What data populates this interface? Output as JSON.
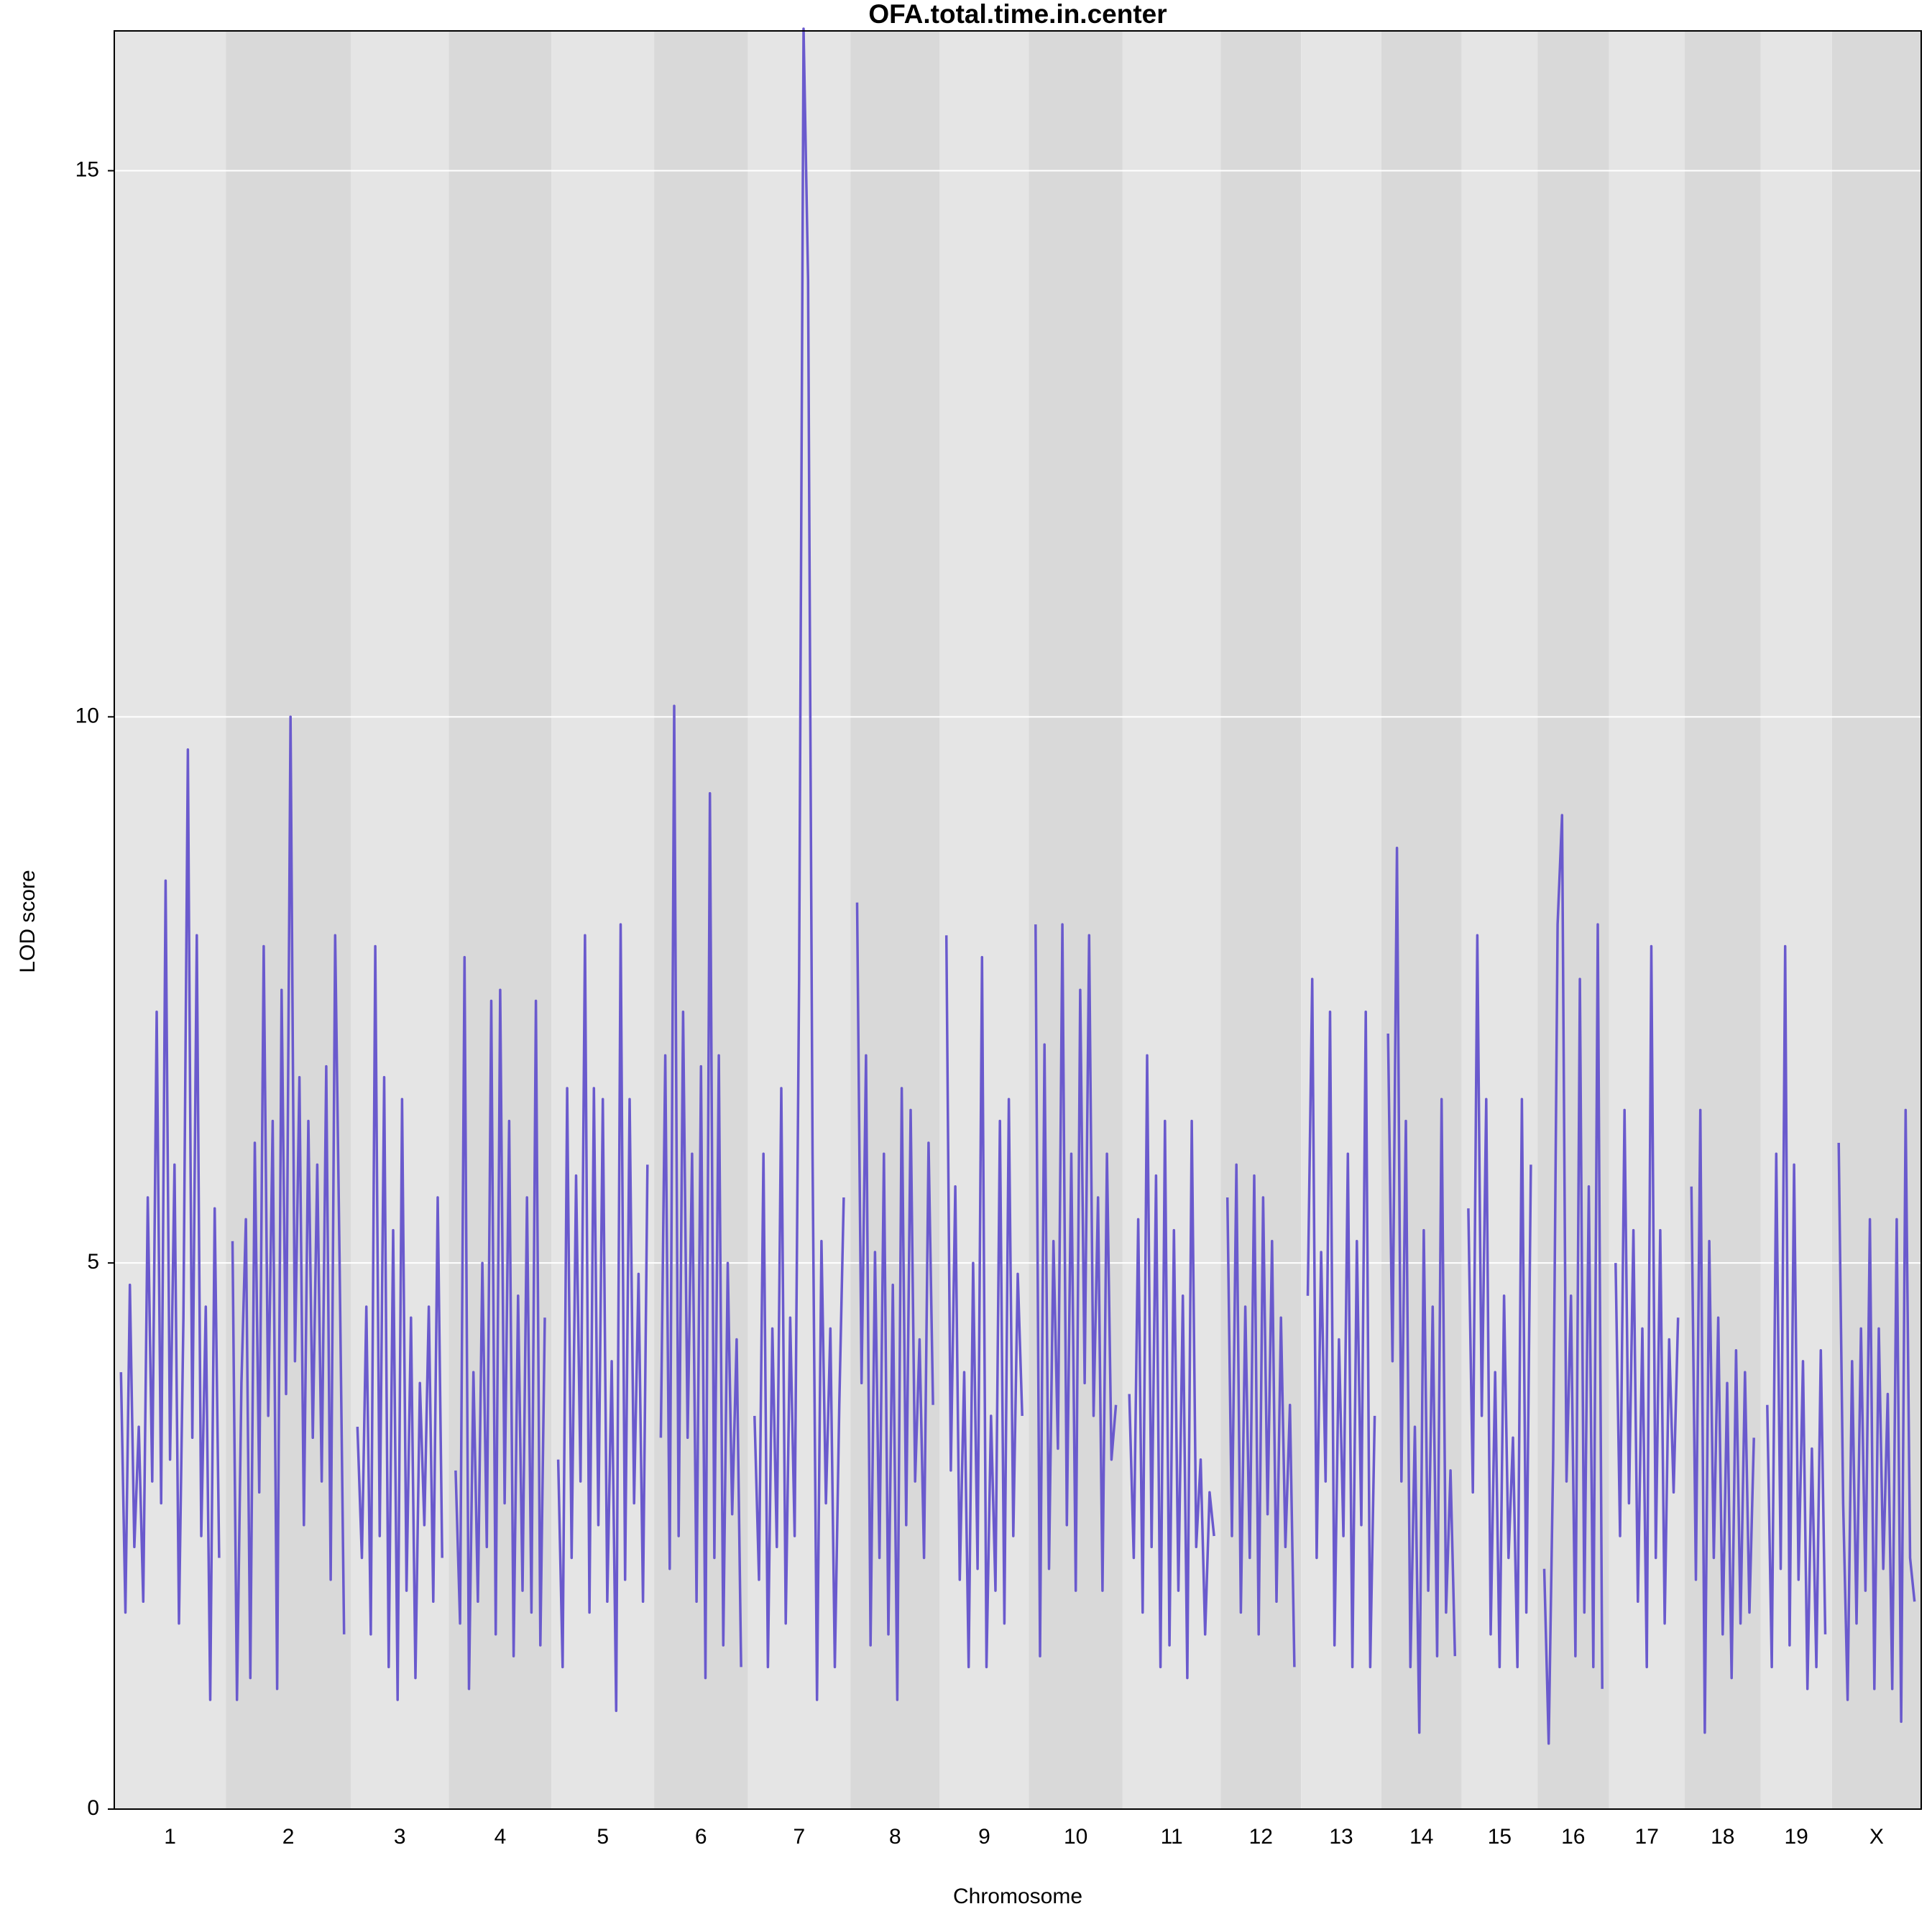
{
  "chart_data": {
    "type": "line",
    "title": "OFA.total.time.in.center",
    "x_label": "Chromosome",
    "y_label": "LOD score",
    "categories": [
      "1",
      "2",
      "3",
      "4",
      "5",
      "6",
      "7",
      "8",
      "9",
      "10",
      "11",
      "12",
      "13",
      "14",
      "15",
      "16",
      "17",
      "18",
      "19",
      "X"
    ],
    "values": [
      [
        4.0,
        1.8,
        4.8,
        2.4,
        3.5,
        1.9,
        5.6,
        3.0,
        7.3,
        2.8,
        8.5,
        3.2,
        5.9,
        1.7,
        4.5,
        9.7,
        3.4,
        8.0,
        2.5,
        4.6,
        1.0,
        5.5,
        2.3
      ],
      [
        5.2,
        1.0,
        3.9,
        5.4,
        1.2,
        6.1,
        2.9,
        7.9,
        3.6,
        6.3,
        1.1,
        7.5,
        3.8,
        10.0,
        4.1,
        6.7,
        2.6,
        6.3,
        3.4,
        5.9,
        3.0,
        6.8,
        2.1,
        8.0,
        5.0,
        1.6
      ],
      [
        3.5,
        2.3,
        4.6,
        1.6,
        7.9,
        2.5,
        6.7,
        1.3,
        5.3,
        1.0,
        6.5,
        2.0,
        4.5,
        1.2,
        3.9,
        2.6,
        4.6,
        1.9,
        5.6,
        2.3
      ],
      [
        3.1,
        1.7,
        7.8,
        1.1,
        4.0,
        1.9,
        5.0,
        2.4,
        7.4,
        1.6,
        7.5,
        2.8,
        6.3,
        1.4,
        4.7,
        2.0,
        5.6,
        1.8,
        7.4,
        1.5,
        4.5
      ],
      [
        3.2,
        1.3,
        6.6,
        2.3,
        5.8,
        3.0,
        8.0,
        1.8,
        6.6,
        2.6,
        6.5,
        1.9,
        4.1,
        0.9,
        8.1,
        2.1,
        6.5,
        2.8,
        4.9,
        1.9,
        5.9
      ],
      [
        3.4,
        6.9,
        2.2,
        10.1,
        2.5,
        7.3,
        3.4,
        6.0,
        1.9,
        6.8,
        1.2,
        9.3,
        2.3,
        6.9,
        1.5,
        5.0,
        2.7,
        4.3,
        1.3
      ],
      [
        3.6,
        2.1,
        6.0,
        1.3,
        4.4,
        2.4,
        6.6,
        1.7,
        4.5,
        2.5,
        7.6,
        16.3,
        14.0,
        6.0,
        1.0,
        5.2,
        2.8,
        4.4,
        1.3,
        3.7,
        5.6
      ],
      [
        8.3,
        3.9,
        6.9,
        1.5,
        5.1,
        2.3,
        6.0,
        1.6,
        4.8,
        1.0,
        6.6,
        2.6,
        6.4,
        3.0,
        4.3,
        2.3,
        6.1,
        3.7
      ],
      [
        8.0,
        3.1,
        5.7,
        2.1,
        4.0,
        1.3,
        5.0,
        2.2,
        7.8,
        1.3,
        3.6,
        2.0,
        6.3,
        1.7,
        6.5,
        2.5,
        4.9,
        3.6
      ],
      [
        8.1,
        1.4,
        7.0,
        2.2,
        5.2,
        3.3,
        8.1,
        2.6,
        6.0,
        2.0,
        7.5,
        3.9,
        8.0,
        3.6,
        5.6,
        2.0,
        6.0,
        3.2,
        3.7
      ],
      [
        3.8,
        2.3,
        5.4,
        1.8,
        6.9,
        2.4,
        5.8,
        1.3,
        6.3,
        1.5,
        5.3,
        2.0,
        4.7,
        1.2,
        6.3,
        2.4,
        3.2,
        1.6,
        2.9,
        2.5
      ],
      [
        5.6,
        2.5,
        5.9,
        1.8,
        4.6,
        2.3,
        5.8,
        1.6,
        5.6,
        2.7,
        5.2,
        1.9,
        4.5,
        2.4,
        3.7,
        1.3
      ],
      [
        4.7,
        7.6,
        2.3,
        5.1,
        3.0,
        7.3,
        1.5,
        4.3,
        2.5,
        6.0,
        1.3,
        5.2,
        2.6,
        7.3,
        1.3,
        3.6
      ],
      [
        7.1,
        4.1,
        8.8,
        3.0,
        6.3,
        1.3,
        3.5,
        0.7,
        5.3,
        2.0,
        4.6,
        1.4,
        6.5,
        1.8,
        3.1,
        1.4
      ],
      [
        5.5,
        2.9,
        8.0,
        3.6,
        6.5,
        1.6,
        4.0,
        1.3,
        4.7,
        2.3,
        3.4,
        1.3,
        6.5,
        1.8,
        5.9
      ],
      [
        2.2,
        0.6,
        3.2,
        8.1,
        9.1,
        3.0,
        4.7,
        1.4,
        7.6,
        1.8,
        5.7,
        1.3,
        8.1,
        1.1
      ],
      [
        5.0,
        2.5,
        6.4,
        2.8,
        5.3,
        1.9,
        4.4,
        1.3,
        7.9,
        2.3,
        5.3,
        1.7,
        4.3,
        2.9,
        4.5
      ],
      [
        5.7,
        2.1,
        6.4,
        0.7,
        5.2,
        2.3,
        4.5,
        1.6,
        3.9,
        1.2,
        4.2,
        1.7,
        4.0,
        1.8,
        3.4
      ],
      [
        3.7,
        1.3,
        6.0,
        2.2,
        7.9,
        1.5,
        5.9,
        2.1,
        4.1,
        1.1,
        3.3,
        1.3,
        4.2,
        1.6
      ],
      [
        6.1,
        2.8,
        1.0,
        4.1,
        1.7,
        4.4,
        2.0,
        5.4,
        1.1,
        4.4,
        2.2,
        3.8,
        1.1,
        5.4,
        0.8,
        6.4,
        2.3,
        1.9
      ]
    ],
    "color": "#6a5acd",
    "band_colors": [
      "#e5e5e5",
      "#d9d9d9"
    ],
    "ylim": [
      0,
      16.28
    ],
    "yticks": [
      0,
      5,
      10,
      15
    ],
    "grid": true
  }
}
